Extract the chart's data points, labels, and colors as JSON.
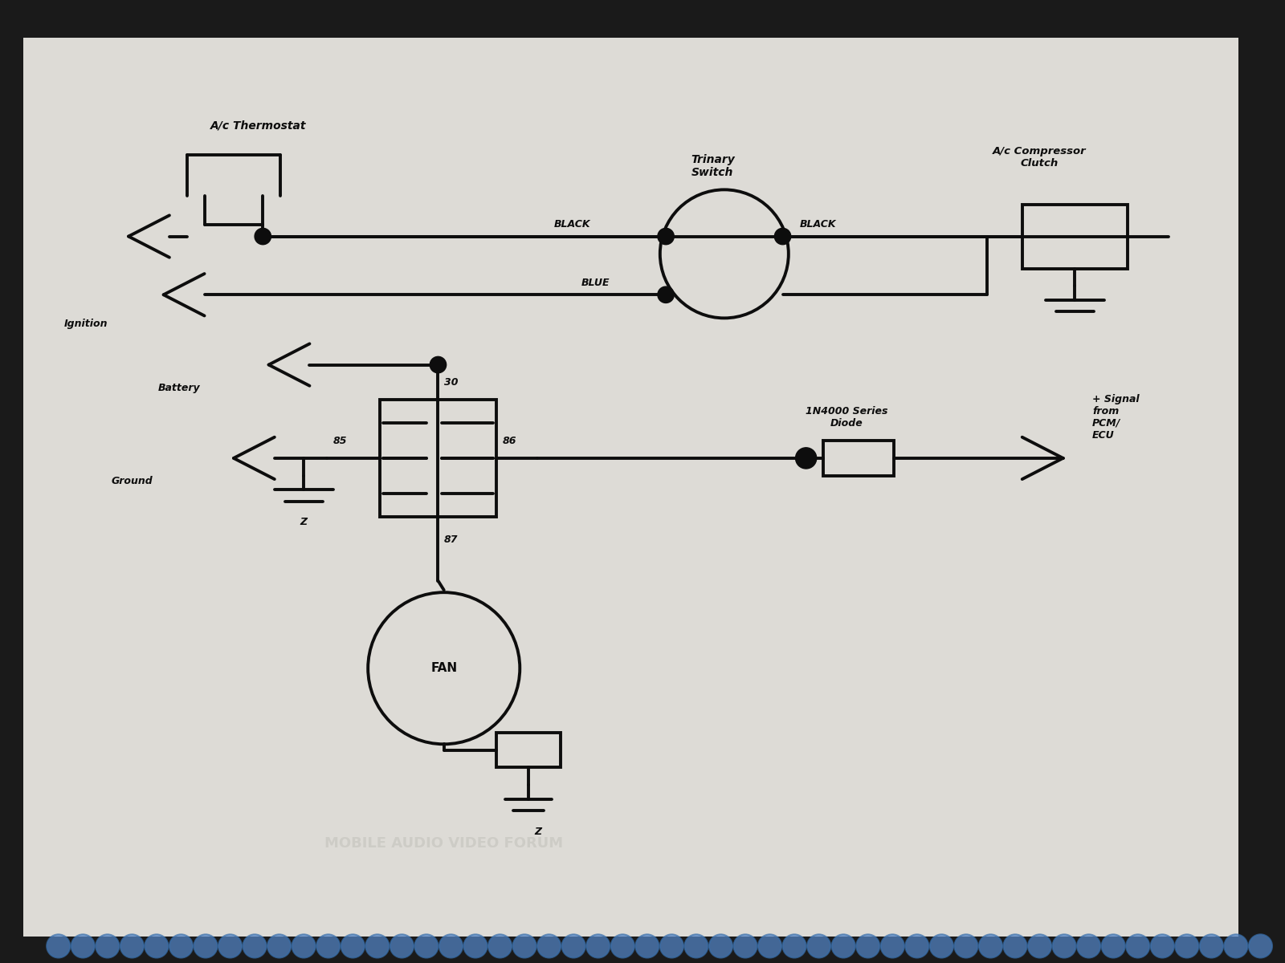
{
  "fig_w": 16.0,
  "fig_h": 12.0,
  "bg_outer": "#1a1a1a",
  "bg_paper": "#dddbd6",
  "lc": "#0d0d0d",
  "lw": 2.8,
  "xlim": [
    0,
    110
  ],
  "ylim": [
    0,
    82
  ],
  "labels": {
    "ac_therm": "A/c Thermostat",
    "trinary": "Trinary\nSwitch",
    "ac_comp": "A/c Compressor\nClutch",
    "ignition": "Ignition",
    "battery": "Battery",
    "ground": "Ground",
    "diode": "1N4000 Series\nDiode",
    "pcm": "+ Signal\nfrom\nPCM/\nECU",
    "fan": "FAN",
    "black_l": "BLACK",
    "black_r": "BLACK",
    "blue": "BLUE",
    "r30": "30",
    "r85": "85",
    "r86": "86",
    "r87": "87"
  },
  "watermark": "MOBILE AUDIO VIDEO FORUM",
  "watermark_alpha": 0.18
}
